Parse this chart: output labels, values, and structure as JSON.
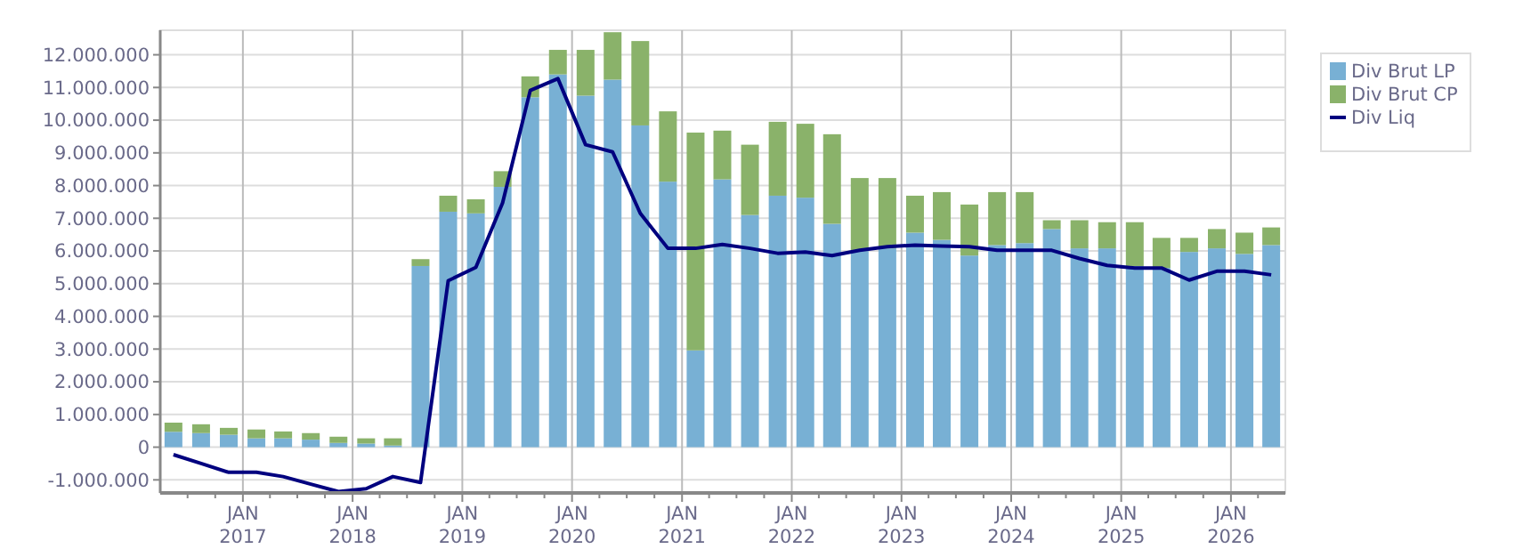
{
  "chart_data": {
    "type": "bar",
    "stacked": true,
    "grid": true,
    "legend": "top right",
    "x": [
      "2016-05-15",
      "2016-08-15",
      "2016-11-15",
      "2017-02-15",
      "2017-05-15",
      "2017-08-15",
      "2017-11-15",
      "2018-02-15",
      "2018-05-15",
      "2018-08-15",
      "2018-11-15",
      "2019-02-15",
      "2019-05-15",
      "2019-08-15",
      "2019-11-15",
      "2020-02-15",
      "2020-05-15",
      "2020-08-15",
      "2020-11-15",
      "2021-02-15",
      "2021-05-15",
      "2021-08-15",
      "2021-11-15",
      "2022-02-15",
      "2022-05-15",
      "2022-08-15",
      "2022-11-15",
      "2023-02-15",
      "2023-05-15",
      "2023-08-15",
      "2023-11-15",
      "2024-02-15",
      "2024-05-15",
      "2024-08-15",
      "2024-11-15",
      "2025-02-15",
      "2025-05-15",
      "2025-08-15",
      "2025-11-15",
      "2026-02-15",
      "2026-05-15"
    ],
    "series": [
      {
        "name": "Div Brut LP",
        "color": "#78b0d4",
        "values": [
          470000,
          430000,
          380000,
          270000,
          270000,
          230000,
          130000,
          110000,
          50000,
          5540000,
          7200000,
          7150000,
          7960000,
          10700000,
          11400000,
          10750000,
          11240000,
          9840000,
          8120000,
          2960000,
          8190000,
          7100000,
          7690000,
          7630000,
          6830000,
          6000000,
          6080000,
          6560000,
          6340000,
          5860000,
          6180000,
          6240000,
          6670000,
          6080000,
          6080000,
          5540000,
          5480000,
          5970000,
          6080000,
          5910000,
          6180000
        ]
      },
      {
        "name": "Div Brut CP",
        "color": "#8ab26a",
        "values": [
          280000,
          270000,
          210000,
          270000,
          210000,
          200000,
          190000,
          160000,
          220000,
          210000,
          490000,
          430000,
          480000,
          640000,
          750000,
          1400000,
          1450000,
          2580000,
          2150000,
          6660000,
          1490000,
          2150000,
          2260000,
          2260000,
          2740000,
          2230000,
          2150000,
          1130000,
          1460000,
          1560000,
          1620000,
          1560000,
          270000,
          860000,
          800000,
          1340000,
          920000,
          430000,
          590000,
          650000,
          540000
        ]
      },
      {
        "name": "Div Liq",
        "type": "line",
        "color": "#00007f",
        "values": [
          -230000,
          -500000,
          -770000,
          -770000,
          -900000,
          -1130000,
          -1360000,
          -1270000,
          -900000,
          -1080000,
          5090000,
          5500000,
          7470000,
          10910000,
          11270000,
          9250000,
          9030000,
          7150000,
          6080000,
          6080000,
          6200000,
          6080000,
          5930000,
          5970000,
          5860000,
          6020000,
          6130000,
          6180000,
          6150000,
          6130000,
          6020000,
          6020000,
          6020000,
          5770000,
          5560000,
          5480000,
          5480000,
          5110000,
          5380000,
          5380000,
          5270000
        ]
      }
    ],
    "xlim": [
      "2016-04-01",
      "2026-07-01"
    ],
    "xticks": [
      {
        "value": "2016-07-01",
        "label": null
      },
      {
        "value": "2016-10-01",
        "label": null
      },
      {
        "value": "2017-01-01",
        "label": "JAN 2017"
      },
      {
        "value": "2017-04-01",
        "label": null
      },
      {
        "value": "2017-07-01",
        "label": null
      },
      {
        "value": "2017-10-01",
        "label": null
      },
      {
        "value": "2018-01-01",
        "label": "JAN 2018"
      },
      {
        "value": "2018-04-01",
        "label": null
      },
      {
        "value": "2018-07-01",
        "label": null
      },
      {
        "value": "2018-10-01",
        "label": null
      },
      {
        "value": "2019-01-01",
        "label": "JAN 2019"
      },
      {
        "value": "2019-04-01",
        "label": null
      },
      {
        "value": "2019-07-01",
        "label": null
      },
      {
        "value": "2019-10-01",
        "label": null
      },
      {
        "value": "2020-01-01",
        "label": "JAN 2020"
      },
      {
        "value": "2020-04-01",
        "label": null
      },
      {
        "value": "2020-07-01",
        "label": null
      },
      {
        "value": "2020-10-01",
        "label": null
      },
      {
        "value": "2021-01-01",
        "label": "JAN 2021"
      },
      {
        "value": "2021-04-01",
        "label": null
      },
      {
        "value": "2021-07-01",
        "label": null
      },
      {
        "value": "2021-10-01",
        "label": null
      },
      {
        "value": "2022-01-01",
        "label": "JAN 2022"
      },
      {
        "value": "2022-04-01",
        "label": null
      },
      {
        "value": "2022-07-01",
        "label": null
      },
      {
        "value": "2022-10-01",
        "label": null
      },
      {
        "value": "2023-01-01",
        "label": "JAN 2023"
      },
      {
        "value": "2023-04-01",
        "label": null
      },
      {
        "value": "2023-07-01",
        "label": null
      },
      {
        "value": "2023-10-01",
        "label": null
      },
      {
        "value": "2024-01-01",
        "label": "JAN 2024"
      },
      {
        "value": "2024-04-01",
        "label": null
      },
      {
        "value": "2024-07-01",
        "label": null
      },
      {
        "value": "2024-10-01",
        "label": null
      },
      {
        "value": "2025-01-01",
        "label": "JAN 2025"
      },
      {
        "value": "2025-04-01",
        "label": null
      },
      {
        "value": "2025-07-01",
        "label": null
      },
      {
        "value": "2025-10-01",
        "label": null
      },
      {
        "value": "2026-01-01",
        "label": "JAN 2026"
      },
      {
        "value": "2026-04-01",
        "label": null
      }
    ],
    "ylim": [
      -1400000,
      12750000
    ],
    "yticks": [
      {
        "value": -1000000,
        "label": "-1.000.000"
      },
      {
        "value": 0,
        "label": "0"
      },
      {
        "value": 1000000,
        "label": "1.000.000"
      },
      {
        "value": 2000000,
        "label": "2.000.000"
      },
      {
        "value": 3000000,
        "label": "3.000.000"
      },
      {
        "value": 4000000,
        "label": "4.000.000"
      },
      {
        "value": 5000000,
        "label": "5.000.000"
      },
      {
        "value": 6000000,
        "label": "6.000.000"
      },
      {
        "value": 7000000,
        "label": "7.000.000"
      },
      {
        "value": 8000000,
        "label": "8.000.000"
      },
      {
        "value": 9000000,
        "label": "9.000.000"
      },
      {
        "value": 10000000,
        "label": "10.000.000"
      },
      {
        "value": 11000000,
        "label": "11.000.000"
      },
      {
        "value": 12000000,
        "label": "12.000.000"
      }
    ]
  }
}
